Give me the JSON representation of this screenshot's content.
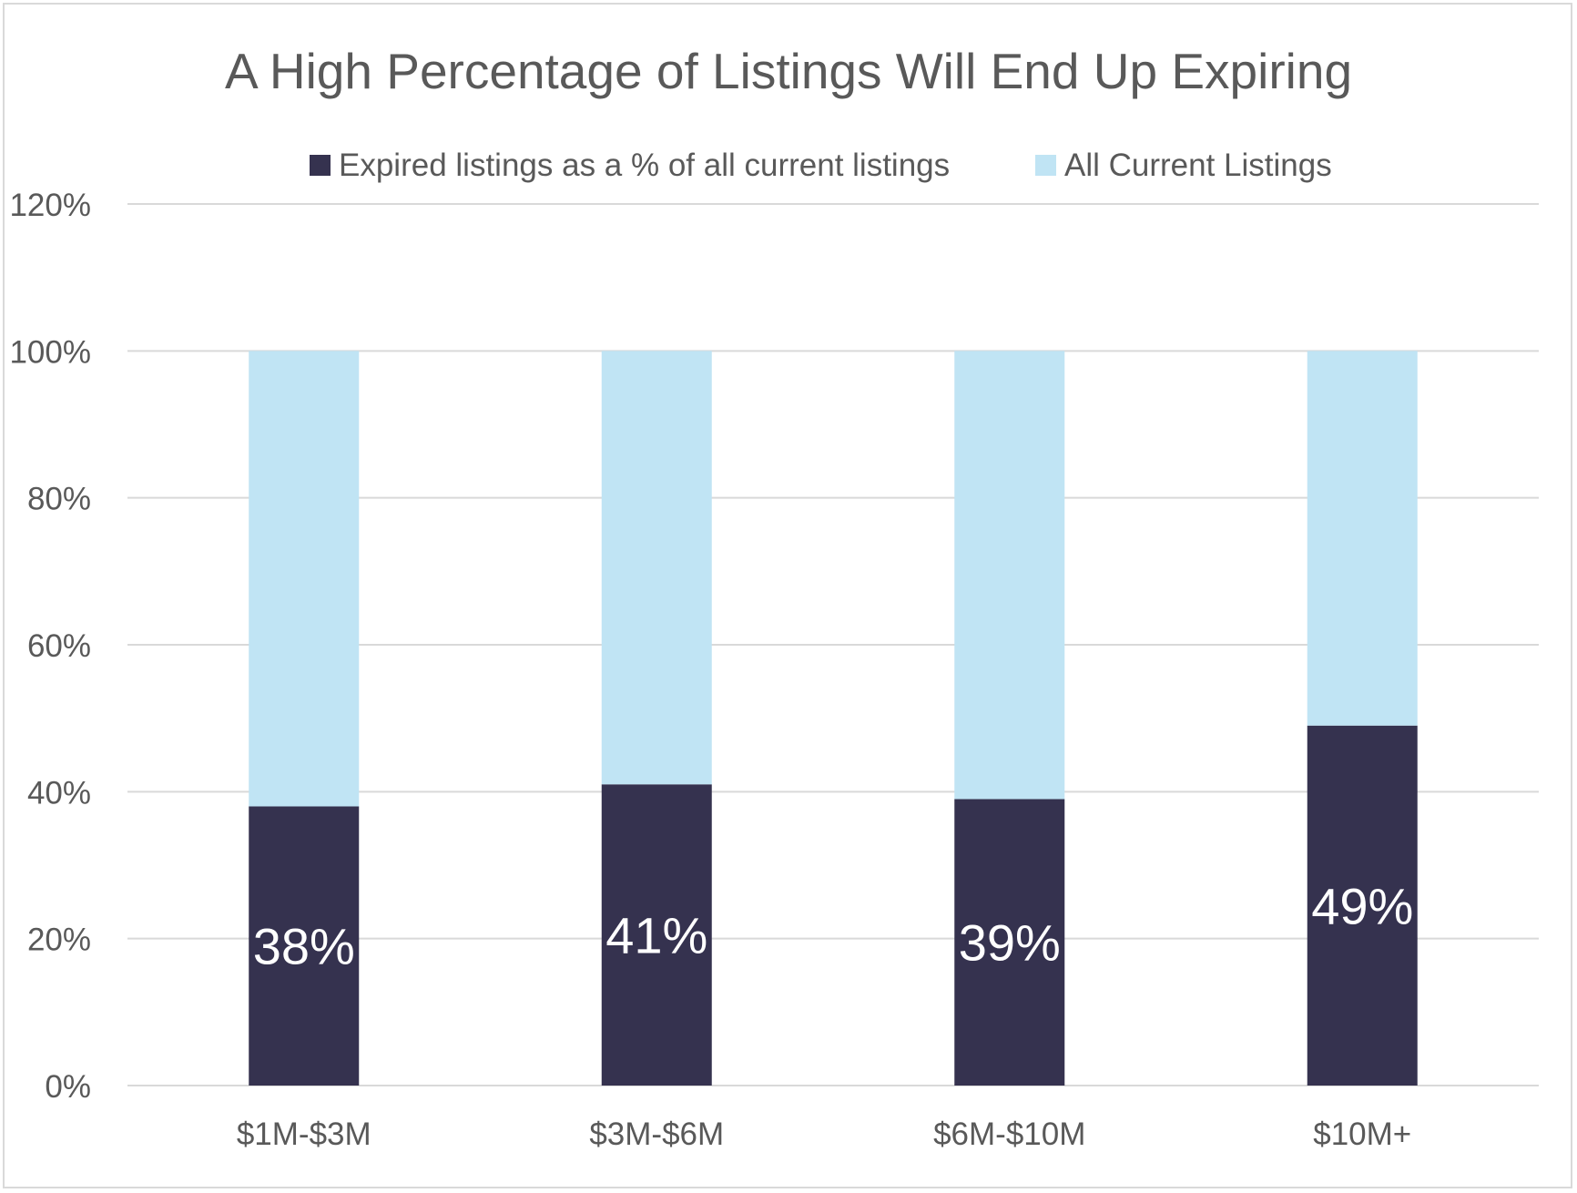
{
  "chart_data": {
    "type": "bar",
    "stacked": true,
    "title": "A High Percentage of Listings Will End Up Expiring",
    "categories": [
      "$1M-$3M",
      "$3M-$6M",
      "$6M-$10M",
      "$10M+"
    ],
    "series": [
      {
        "name": "Expired listings as a % of all current listings",
        "values": [
          38,
          41,
          39,
          49
        ],
        "color": "#35324f",
        "labels": [
          "38%",
          "41%",
          "39%",
          "49%"
        ]
      },
      {
        "name": "All Current Listings",
        "values": [
          62,
          59,
          61,
          51
        ],
        "color": "#c0e4f4"
      }
    ],
    "ylim": [
      0,
      120
    ],
    "yticks": [
      "0%",
      "20%",
      "40%",
      "60%",
      "80%",
      "100%",
      "120%"
    ],
    "legend_position": "top",
    "grid": true,
    "gridline_color": "#d9d9d9"
  }
}
